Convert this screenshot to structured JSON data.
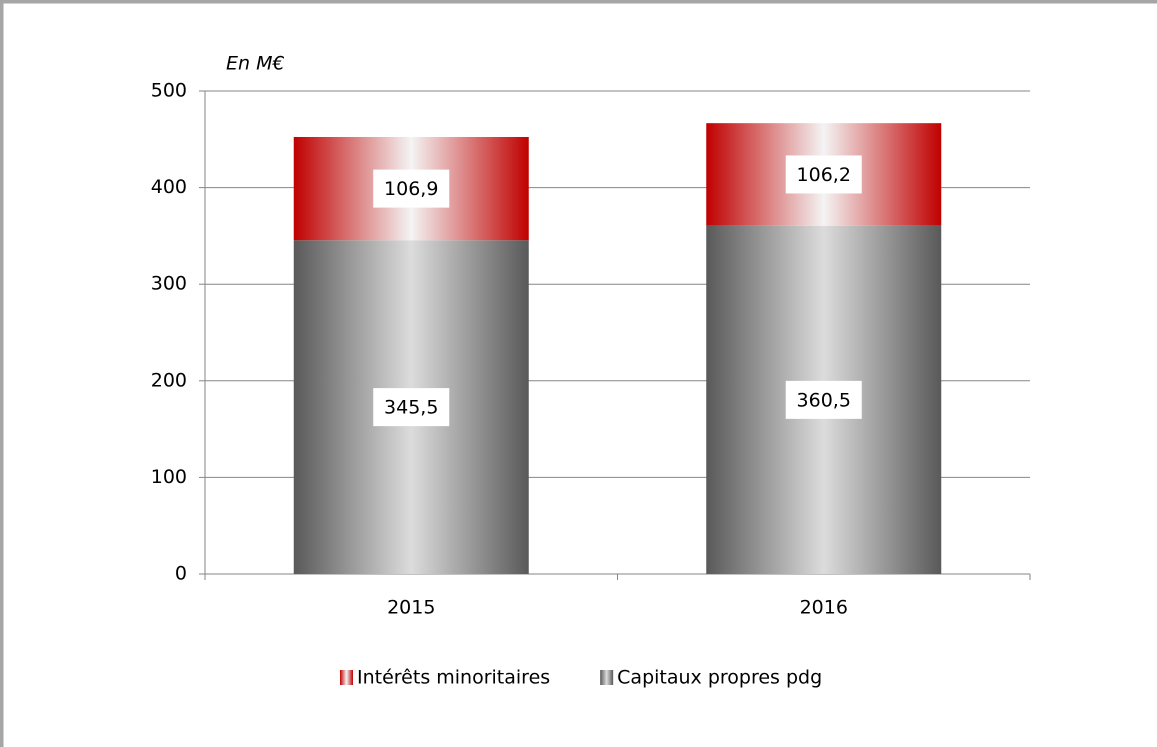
{
  "chart_data": {
    "type": "stacked_bar",
    "unit_label": "En M€",
    "categories": [
      "2015",
      "2016"
    ],
    "series": [
      {
        "name": "Capitaux propres pdg",
        "color": "#595959",
        "values": [
          345.5,
          360.5
        ],
        "value_labels": [
          "345,5",
          "360,5"
        ]
      },
      {
        "name": "Intérêts minoritaires",
        "color": "#c00000",
        "values": [
          106.9,
          106.2
        ],
        "value_labels": [
          "106,9",
          "106,2"
        ]
      }
    ],
    "ylim": [
      0,
      500
    ],
    "yticks": [
      0,
      100,
      200,
      300,
      400,
      500
    ],
    "grid": true
  }
}
